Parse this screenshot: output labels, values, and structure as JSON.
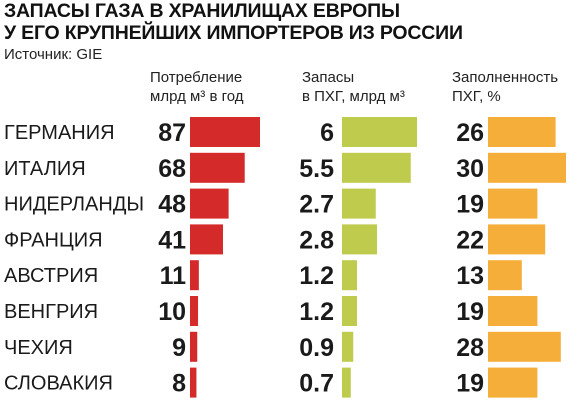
{
  "title": [
    "ЗАПАСЫ ГАЗА В ХРАНИЛИЩАХ ЕВРОПЫ",
    "У ЕГО КРУПНЕЙШИХ ИМПОРТЕРОВ ИЗ РОССИИ"
  ],
  "source": "Источник: GIE",
  "columns": [
    {
      "line1": "Потребление",
      "line2": "млрд м³ в год",
      "color": "#d42a2a"
    },
    {
      "line1": "Запасы",
      "line2": "в ПХГ, млрд м³",
      "color": "#bfcb4c"
    },
    {
      "line1": "Заполненность",
      "line2": "ПХГ, %",
      "color": "#f5ae3a"
    }
  ],
  "chart_data": {
    "type": "bar",
    "categories": [
      "ГЕРМАНИЯ",
      "ИТАЛИЯ",
      "НИДЕРЛАНДЫ",
      "ФРАНЦИЯ",
      "АВСТРИЯ",
      "ВЕНГРИЯ",
      "ЧЕХИЯ",
      "СЛОВАКИЯ"
    ],
    "series": [
      {
        "name": "Потребление млрд м³ в год",
        "values": [
          87,
          68,
          48,
          41,
          11,
          10,
          9,
          8
        ],
        "labels": [
          "87",
          "68",
          "48",
          "41",
          "11",
          "10",
          "9",
          "8"
        ]
      },
      {
        "name": "Запасы в ПХГ, млрд м³",
        "values": [
          6,
          5.5,
          2.7,
          2.8,
          1.2,
          1.2,
          0.9,
          0.7
        ],
        "labels": [
          "6",
          "5.5",
          "2.7",
          "2.8",
          "1.2",
          "1.2",
          "0.9",
          "0.7"
        ]
      },
      {
        "name": "Заполненность ПХГ, %",
        "values": [
          26,
          30,
          19,
          22,
          13,
          19,
          28,
          19
        ],
        "labels": [
          "26",
          "30",
          "19",
          "22",
          "13",
          "19",
          "28",
          "19"
        ]
      }
    ]
  }
}
